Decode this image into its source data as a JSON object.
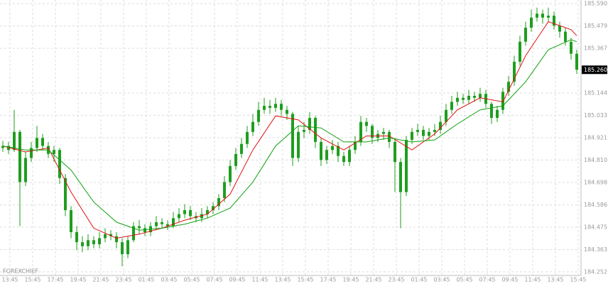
{
  "chart_data": {
    "type": "candlestick",
    "watermark": "FOREXCHIEF",
    "candle_color": "#1e9e1e",
    "grid": true,
    "ylim": [
      184.234,
      185.608
    ],
    "yticks": [
      {
        "value": 185.59,
        "label": "185.590"
      },
      185.479,
      185.367,
      185.144,
      185.033,
      184.921,
      {
        "value": 184.81,
        "label": "184.810"
      },
      184.698,
      184.586,
      184.475,
      184.363,
      184.252
    ],
    "xlim": [
      -0.5,
      101.75
    ],
    "xticks": [
      {
        "value": 1.25,
        "label": "13:45"
      },
      {
        "value": 5.25,
        "label": "15:45"
      },
      {
        "value": 9.25,
        "label": "17:45"
      },
      {
        "value": 13.25,
        "label": "19:45"
      },
      {
        "value": 17.25,
        "label": "21:45"
      },
      {
        "value": 21.25,
        "label": "23:45"
      },
      {
        "value": 25.25,
        "label": "01:45"
      },
      {
        "value": 29.25,
        "label": "03:45"
      },
      {
        "value": 33.25,
        "label": "05:45"
      },
      {
        "value": 37.25,
        "label": "07:45"
      },
      {
        "value": 41.25,
        "label": "09:45"
      },
      {
        "value": 45.25,
        "label": "11:45"
      },
      {
        "value": 49.25,
        "label": "13:45"
      },
      {
        "value": 53.25,
        "label": "15:45"
      },
      {
        "value": 57.25,
        "label": "17:45"
      },
      {
        "value": 61.25,
        "label": "19:45"
      },
      {
        "value": 65.25,
        "label": "21:45"
      },
      {
        "value": 69.25,
        "label": "23:45"
      },
      {
        "value": 73.25,
        "label": "01:45"
      },
      {
        "value": 77.25,
        "label": "03:45"
      },
      {
        "value": 81.25,
        "label": "05:45"
      },
      {
        "value": 85.25,
        "label": "07:45"
      },
      {
        "value": 89.25,
        "label": "09:45"
      },
      {
        "value": 93.25,
        "label": "11:45"
      },
      {
        "value": 97.25,
        "label": "13:45"
      },
      {
        "value": 101.25,
        "label": "15:45"
      }
    ],
    "open": [
      184.87,
      184.88,
      184.86,
      184.95,
      184.7,
      184.82,
      184.87,
      184.92,
      184.88,
      184.84,
      184.86,
      184.72,
      184.56,
      184.45,
      184.4,
      184.38,
      184.41,
      184.39,
      184.42,
      184.44,
      184.43,
      184.4,
      184.34,
      184.41,
      184.48,
      184.47,
      184.45,
      184.48,
      184.5,
      184.49,
      184.48,
      184.52,
      184.54,
      184.56,
      184.53,
      184.52,
      184.54,
      184.56,
      184.58,
      184.62,
      184.7,
      184.78,
      184.84,
      184.89,
      184.95,
      185.0,
      185.06,
      185.08,
      185.07,
      185.09,
      185.06,
      185.04,
      184.82,
      184.95,
      184.96,
      185.02,
      184.9,
      184.81,
      184.86,
      184.88,
      184.83,
      184.8,
      184.86,
      184.9,
      185.0,
      184.98,
      184.92,
      184.94,
      184.95,
      184.9,
      184.8,
      184.65,
      184.91,
      184.95,
      184.96,
      184.93,
      184.95,
      184.96,
      185.0,
      185.06,
      185.1,
      185.12,
      185.11,
      185.13,
      185.12,
      185.14,
      185.09,
      185.02,
      185.06,
      185.15,
      185.2,
      185.3,
      185.4,
      185.47,
      185.52,
      185.54,
      185.52,
      185.53,
      185.48,
      185.45,
      185.4,
      185.34
    ],
    "high": [
      184.905,
      184.9,
      185.06,
      184.96,
      184.85,
      184.9,
      184.98,
      184.94,
      184.9,
      184.88,
      184.87,
      184.74,
      184.58,
      184.48,
      184.43,
      184.44,
      184.43,
      184.45,
      184.47,
      184.46,
      184.45,
      184.42,
      184.43,
      184.5,
      184.51,
      184.49,
      184.5,
      184.53,
      184.52,
      184.51,
      184.55,
      184.57,
      184.59,
      184.58,
      184.55,
      184.57,
      184.58,
      184.6,
      184.64,
      184.73,
      184.81,
      184.87,
      184.92,
      184.98,
      185.04,
      185.1,
      185.12,
      185.11,
      185.12,
      185.11,
      185.08,
      185.05,
      184.98,
      185.0,
      185.05,
      185.03,
      184.92,
      184.88,
      184.91,
      184.9,
      184.85,
      184.88,
      184.93,
      185.03,
      185.02,
      184.99,
      184.96,
      184.97,
      184.96,
      184.92,
      184.82,
      184.93,
      184.97,
      184.99,
      184.98,
      184.97,
      184.99,
      185.03,
      185.09,
      185.13,
      185.15,
      185.14,
      185.16,
      185.15,
      185.17,
      185.16,
      185.1,
      185.08,
      185.17,
      185.23,
      185.33,
      185.43,
      185.5,
      185.56,
      185.57,
      185.56,
      185.57,
      185.55,
      185.5,
      185.47,
      185.42,
      185.36
    ],
    "low": [
      184.85,
      184.84,
      184.85,
      184.48,
      184.68,
      184.8,
      184.85,
      184.86,
      184.82,
      184.8,
      184.69,
      184.53,
      184.42,
      184.36,
      184.35,
      184.36,
      184.37,
      184.37,
      184.4,
      184.41,
      184.37,
      184.28,
      184.32,
      184.4,
      184.44,
      184.43,
      184.43,
      184.46,
      184.47,
      184.46,
      184.47,
      184.5,
      184.52,
      184.51,
      184.5,
      184.5,
      184.52,
      184.54,
      184.56,
      184.6,
      184.68,
      184.76,
      184.82,
      184.87,
      184.93,
      184.98,
      185.04,
      185.04,
      185.05,
      185.03,
      185.01,
      184.78,
      184.8,
      184.92,
      184.94,
      184.87,
      184.78,
      184.79,
      184.84,
      184.8,
      184.78,
      184.78,
      184.84,
      184.88,
      184.95,
      184.89,
      184.9,
      184.91,
      184.87,
      184.65,
      184.47,
      184.63,
      184.89,
      184.93,
      184.91,
      184.91,
      184.93,
      184.94,
      184.98,
      185.04,
      185.08,
      185.09,
      185.09,
      185.1,
      185.1,
      185.07,
      184.99,
      185.0,
      185.04,
      185.13,
      185.18,
      185.28,
      185.38,
      185.45,
      185.5,
      185.49,
      185.5,
      185.46,
      185.42,
      185.38,
      185.31,
      185.24
    ],
    "close": [
      184.88,
      184.86,
      184.95,
      184.7,
      184.82,
      184.87,
      184.92,
      184.88,
      184.84,
      184.86,
      184.72,
      184.56,
      184.45,
      184.4,
      184.38,
      184.41,
      184.39,
      184.42,
      184.44,
      184.43,
      184.4,
      184.34,
      184.41,
      184.48,
      184.47,
      184.45,
      184.48,
      184.5,
      184.49,
      184.48,
      184.52,
      184.54,
      184.56,
      184.53,
      184.52,
      184.54,
      184.56,
      184.58,
      184.62,
      184.7,
      184.78,
      184.84,
      184.89,
      184.95,
      185.0,
      185.06,
      185.08,
      185.07,
      185.09,
      185.06,
      185.04,
      184.82,
      184.95,
      184.96,
      185.02,
      184.9,
      184.81,
      184.86,
      184.88,
      184.83,
      184.8,
      184.86,
      184.9,
      185.0,
      184.98,
      184.92,
      184.94,
      184.95,
      184.9,
      184.8,
      184.65,
      184.91,
      184.95,
      184.96,
      184.93,
      184.95,
      184.96,
      185.0,
      185.06,
      185.1,
      185.12,
      185.11,
      185.13,
      185.12,
      185.14,
      185.09,
      185.02,
      185.06,
      185.15,
      185.2,
      185.3,
      185.4,
      185.47,
      185.52,
      185.54,
      185.52,
      185.53,
      185.48,
      185.45,
      185.4,
      185.34,
      185.26
    ],
    "series": [
      {
        "color": "#e01010",
        "x": [
          0,
          4,
          8,
          12,
          16,
          20,
          24,
          28,
          32,
          36,
          40,
          44,
          48,
          52,
          56,
          60,
          64,
          68,
          72,
          76,
          80,
          84,
          88,
          92,
          96,
          100,
          101
        ],
        "values": [
          184.88,
          184.85,
          184.87,
          184.65,
          184.47,
          184.42,
          184.44,
          184.47,
          184.51,
          184.54,
          184.64,
          184.86,
          185.03,
          185.01,
          184.92,
          184.86,
          184.93,
          184.93,
          184.86,
          184.94,
          185.06,
          185.12,
          185.1,
          185.33,
          185.5,
          185.46,
          185.43
        ]
      },
      {
        "color": "#10a010",
        "x": [
          0,
          4,
          8,
          12,
          16,
          20,
          24,
          28,
          32,
          36,
          40,
          44,
          48,
          52,
          56,
          60,
          64,
          68,
          72,
          76,
          80,
          84,
          88,
          92,
          96,
          100,
          101
        ],
        "values": [
          184.88,
          184.86,
          184.86,
          184.76,
          184.6,
          184.5,
          184.46,
          184.47,
          184.49,
          184.52,
          184.57,
          184.7,
          184.88,
          184.98,
          184.97,
          184.9,
          184.9,
          184.92,
          184.9,
          184.91,
          184.99,
          185.06,
          185.08,
          185.2,
          185.36,
          185.41,
          185.4
        ]
      }
    ],
    "last_price": {
      "value": 185.26,
      "label": "185.260"
    }
  }
}
